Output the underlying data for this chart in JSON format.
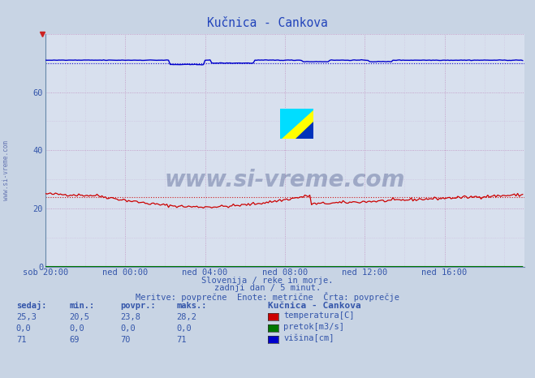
{
  "title": "Kučnica - Cankova",
  "bg_color": "#c8d4e4",
  "plot_bg_color": "#d8e0ee",
  "xlim": [
    0,
    288
  ],
  "ylim": [
    0,
    80
  ],
  "yticks": [
    0,
    20,
    40,
    60
  ],
  "xtick_labels": [
    "sob 20:00",
    "ned 00:00",
    "ned 04:00",
    "ned 08:00",
    "ned 12:00",
    "ned 16:00"
  ],
  "xtick_positions": [
    0,
    48,
    96,
    144,
    192,
    240
  ],
  "subtitle1": "Slovenija / reke in morje.",
  "subtitle2": "zadnji dan / 5 minut.",
  "subtitle3": "Meritve: povprečne  Enote: metrične  Črta: povprečje",
  "temp_color": "#cc0000",
  "flow_color": "#007700",
  "height_color": "#0000cc",
  "temp_avg": 23.8,
  "height_avg": 70.0,
  "watermark_text": "www.si-vreme.com",
  "legend_title": "Kučnica - Cankova",
  "legend_items": [
    {
      "label": "temperatura[C]",
      "color": "#cc0000"
    },
    {
      "label": "pretok[m3/s]",
      "color": "#007700"
    },
    {
      "label": "višina[cm]",
      "color": "#0000cc"
    }
  ],
  "table_headers": [
    "sedaj:",
    "min.:",
    "povpr.:",
    "maks.:"
  ],
  "table_rows": [
    [
      "25,3",
      "20,5",
      "23,8",
      "28,2"
    ],
    [
      "0,0",
      "0,0",
      "0,0",
      "0,0"
    ],
    [
      "71",
      "69",
      "70",
      "71"
    ]
  ],
  "text_color": "#3355aa",
  "grid_major_color": "#c090c0",
  "grid_minor_color": "#ccbbdd"
}
